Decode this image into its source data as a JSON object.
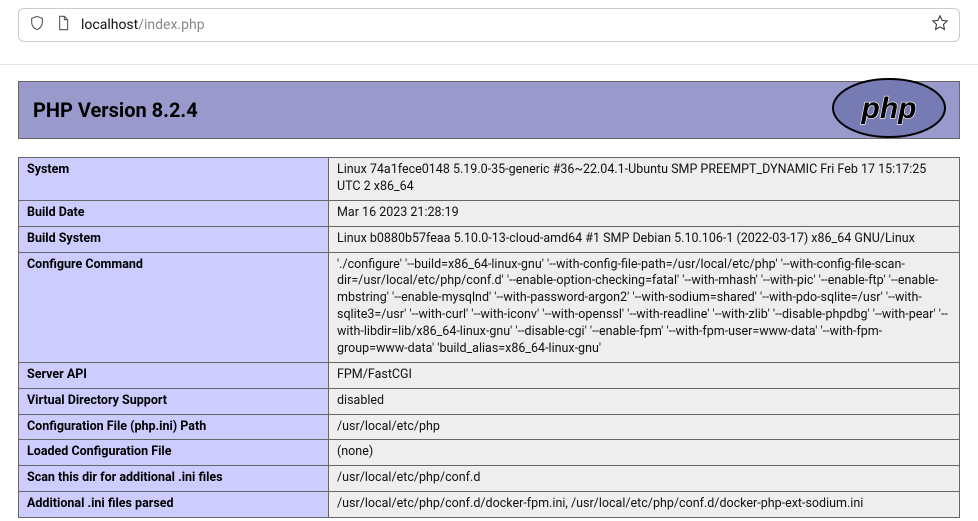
{
  "browser": {
    "url_host": "localhost",
    "url_path": "/index.php"
  },
  "header": {
    "title": "PHP Version 8.2.4"
  },
  "colors": {
    "header_bg": "#9999cc",
    "key_bg": "#ccccff",
    "val_bg": "#eeeeee",
    "border": "#666666",
    "logo_fill": "#777bb3",
    "logo_stroke": "#000000"
  },
  "rows": [
    {
      "k": "System",
      "v": "Linux 74a1fece0148 5.19.0-35-generic #36~22.04.1-Ubuntu SMP PREEMPT_DYNAMIC Fri Feb 17 15:17:25 UTC 2 x86_64"
    },
    {
      "k": "Build Date",
      "v": "Mar 16 2023 21:28:19"
    },
    {
      "k": "Build System",
      "v": "Linux b0880b57feaa 5.10.0-13-cloud-amd64 #1 SMP Debian 5.10.106-1 (2022-03-17) x86_64 GNU/Linux"
    },
    {
      "k": "Configure Command",
      "v": "'./configure' '--build=x86_64-linux-gnu' '--with-config-file-path=/usr/local/etc/php' '--with-config-file-scan-dir=/usr/local/etc/php/conf.d' '--enable-option-checking=fatal' '--with-mhash' '--with-pic' '--enable-ftp' '--enable-mbstring' '--enable-mysqlnd' '--with-password-argon2' '--with-sodium=shared' '--with-pdo-sqlite=/usr' '--with-sqlite3=/usr' '--with-curl' '--with-iconv' '--with-openssl' '--with-readline' '--with-zlib' '--disable-phpdbg' '--with-pear' '--with-libdir=lib/x86_64-linux-gnu' '--disable-cgi' '--enable-fpm' '--with-fpm-user=www-data' '--with-fpm-group=www-data' 'build_alias=x86_64-linux-gnu'"
    },
    {
      "k": "Server API",
      "v": "FPM/FastCGI"
    },
    {
      "k": "Virtual Directory Support",
      "v": "disabled"
    },
    {
      "k": "Configuration File (php.ini) Path",
      "v": "/usr/local/etc/php"
    },
    {
      "k": "Loaded Configuration File",
      "v": "(none)"
    },
    {
      "k": "Scan this dir for additional .ini files",
      "v": "/usr/local/etc/php/conf.d"
    },
    {
      "k": "Additional .ini files parsed",
      "v": "/usr/local/etc/php/conf.d/docker-fpm.ini, /usr/local/etc/php/conf.d/docker-php-ext-sodium.ini"
    }
  ]
}
